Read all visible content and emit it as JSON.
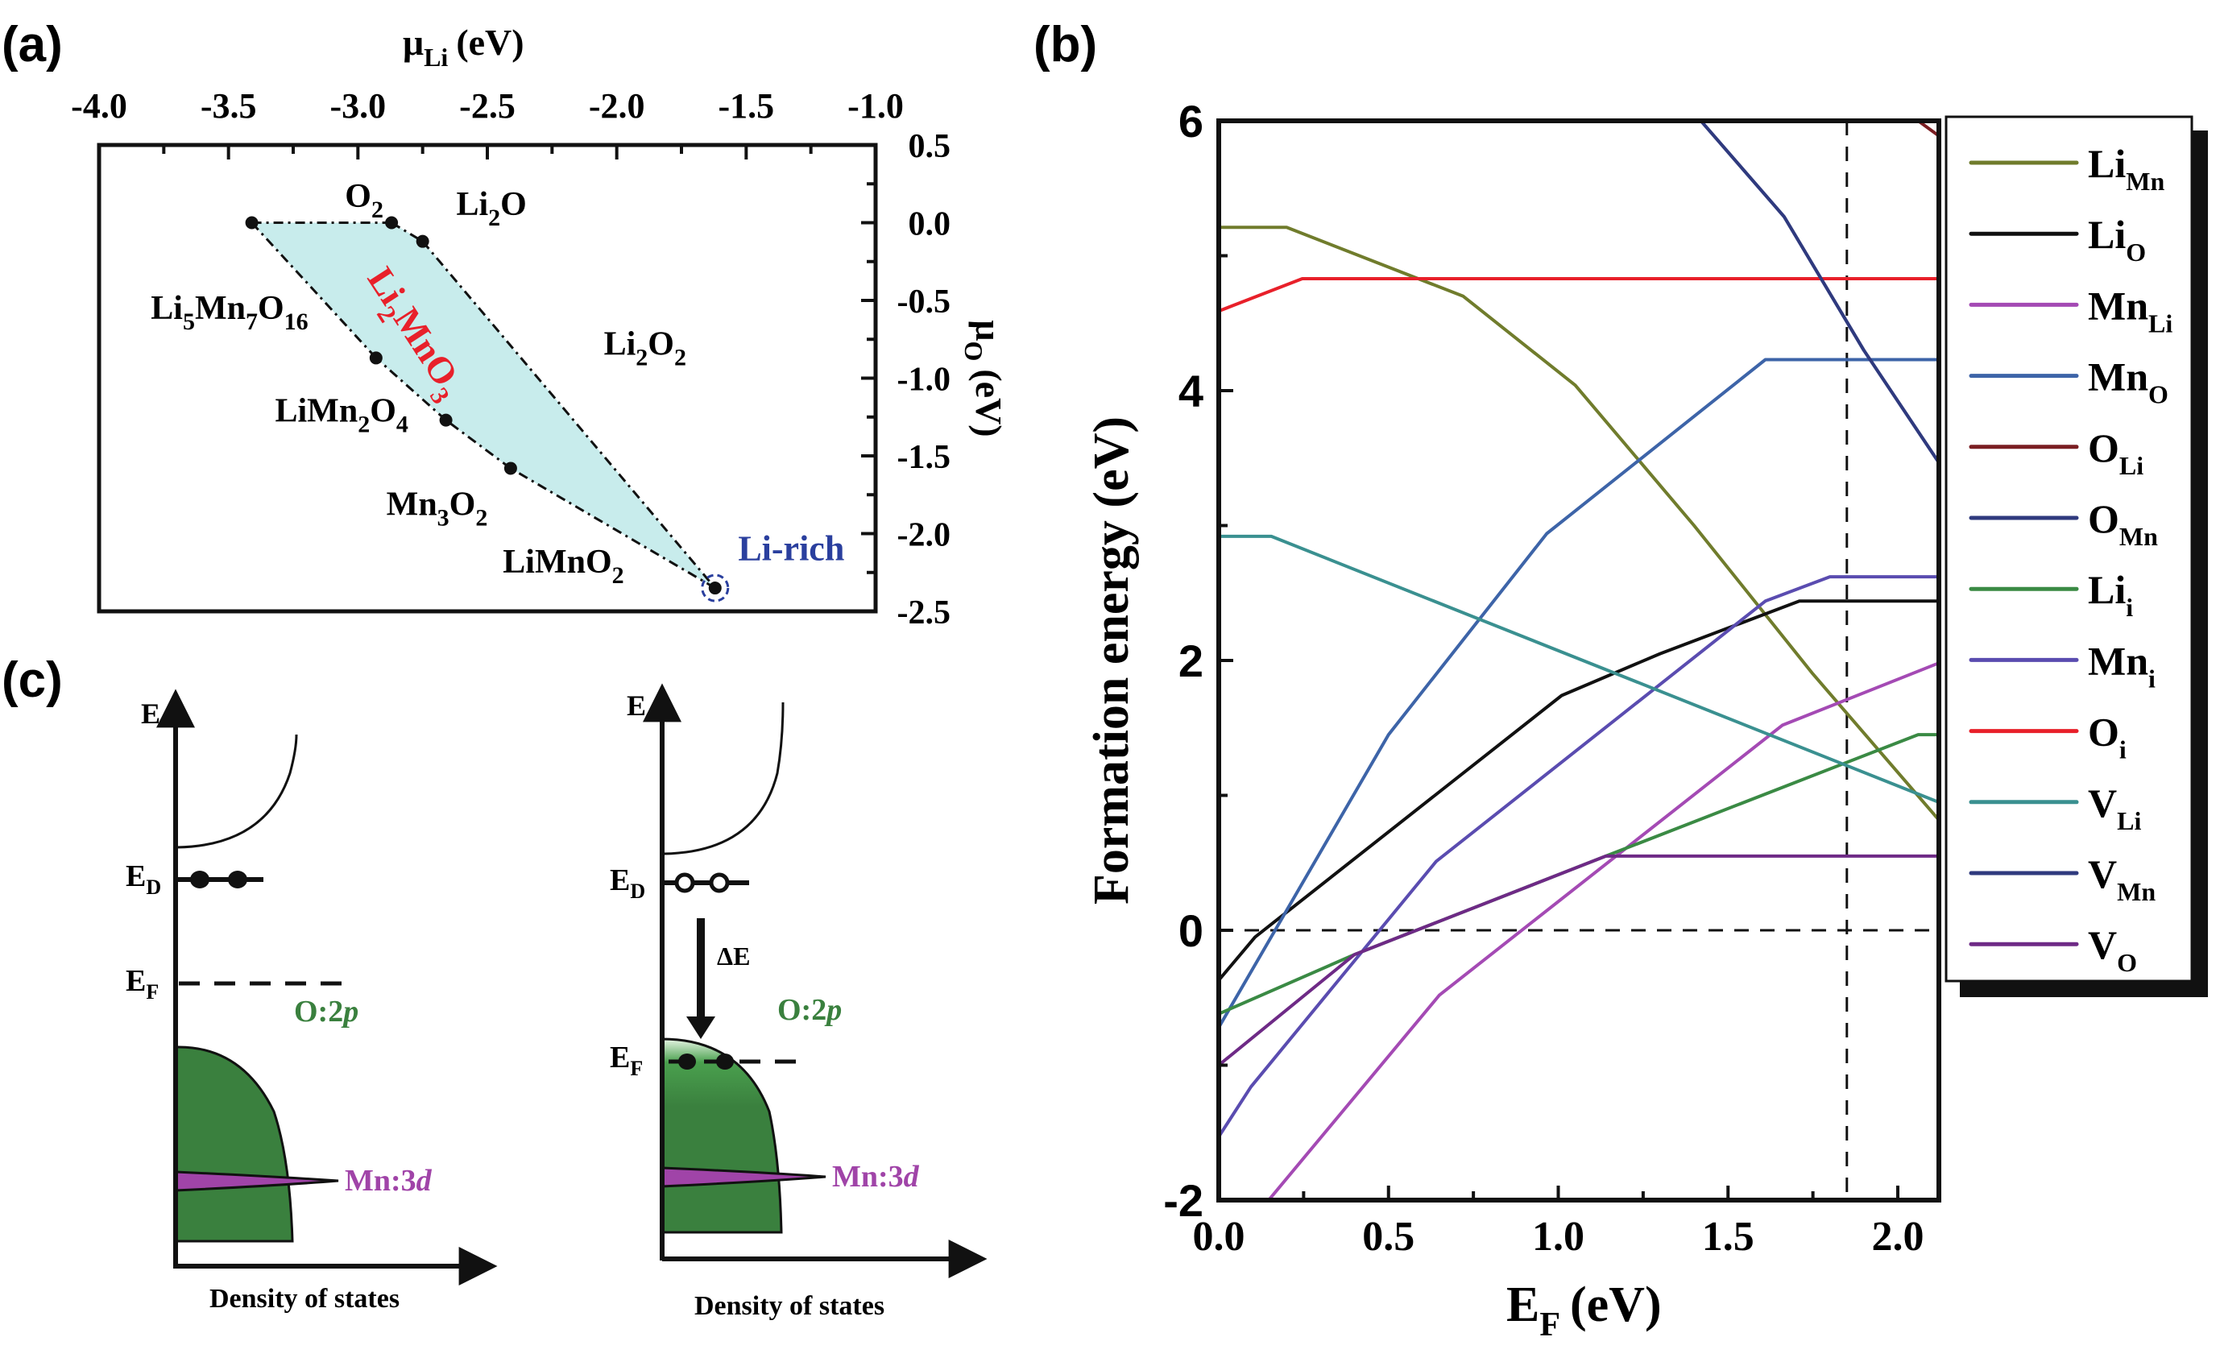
{
  "figure": {
    "panel_labels": {
      "a": "(a)",
      "b": "(b)",
      "c": "(c)"
    }
  },
  "chart_data": [
    {
      "id": "a",
      "type": "area",
      "title": "",
      "xlabel": "μ",
      "xlabel_sub": "Li",
      "xlabel_unit": "(eV)",
      "ylabel": "μ",
      "ylabel_sub": "O",
      "ylabel_unit": "(eV)",
      "x_axis_position": "top",
      "y_axis_position": "right",
      "xlim": [
        -4.0,
        -1.0
      ],
      "ylim": [
        -2.5,
        0.5
      ],
      "xticks": [
        "-4.0",
        "-3.5",
        "-3.0",
        "-2.5",
        "-2.0",
        "-1.5",
        "-1.0"
      ],
      "xtick_values": [
        -4.0,
        -3.5,
        -3.0,
        -2.5,
        -2.0,
        -1.5,
        -1.0
      ],
      "yticks": [
        "0.5",
        "0.0",
        "-0.5",
        "-1.0",
        "-1.5",
        "-2.0",
        "-2.5"
      ],
      "ytick_values": [
        0.5,
        0.0,
        -0.5,
        -1.0,
        -1.5,
        -2.0,
        -2.5
      ],
      "region_label": {
        "main": "Li",
        "sub1": "2",
        "mid": "MnO",
        "sub2": "3",
        "color": "#e8202a"
      },
      "fill_color": "#c8ecec",
      "polygon": [
        {
          "x": -3.41,
          "y": 0.0
        },
        {
          "x": -2.87,
          "y": 0.0
        },
        {
          "x": -2.75,
          "y": -0.12
        },
        {
          "x": -1.62,
          "y": -2.35
        },
        {
          "x": -2.41,
          "y": -1.58
        },
        {
          "x": -2.66,
          "y": -1.27
        },
        {
          "x": -2.93,
          "y": -0.87
        }
      ],
      "points": [
        {
          "x": -3.41,
          "y": 0.0
        },
        {
          "x": -2.87,
          "y": 0.0
        },
        {
          "x": -2.75,
          "y": -0.12
        },
        {
          "x": -2.93,
          "y": -0.87
        },
        {
          "x": -2.66,
          "y": -1.27
        },
        {
          "x": -2.41,
          "y": -1.58
        },
        {
          "x": -1.62,
          "y": -2.35
        }
      ],
      "phase_labels": [
        {
          "main": "O",
          "sub": "2",
          "x": -3.05,
          "y": 0.1
        },
        {
          "main": "Li",
          "sub": "2",
          "tail": "O",
          "x": -2.62,
          "y": 0.05
        },
        {
          "main": "Li",
          "sub": "5",
          "tail": "Mn",
          "sub2": "7",
          "tail2": "O",
          "sub3": "16",
          "x": -3.8,
          "y": -0.62
        },
        {
          "main": "Li",
          "sub": "2",
          "tail": "O",
          "sub2": "2",
          "x": -2.05,
          "y": -0.85
        },
        {
          "main": "LiMn",
          "sub": "2",
          "tail": "O",
          "sub2": "4",
          "x": -3.32,
          "y": -1.28
        },
        {
          "main": "Mn",
          "sub": "3",
          "tail": "O",
          "sub2": "2",
          "x": -2.89,
          "y": -1.88
        },
        {
          "main": "LiMnO",
          "sub": "2",
          "x": -2.44,
          "y": -2.25
        }
      ],
      "annotation": {
        "text": "Li-rich",
        "color": "#2a3f9e",
        "x": -1.5,
        "y": -2.17
      }
    },
    {
      "id": "b",
      "type": "line",
      "title": "",
      "xlabel": "E",
      "xlabel_sub": "F",
      "xlabel_unit": "(eV)",
      "ylabel": "Formation energy (eV)",
      "xlim": [
        0.0,
        2.12
      ],
      "ylim": [
        -2,
        6
      ],
      "xticks": [
        "0.0",
        "0.5",
        "1.0",
        "1.5",
        "2.0"
      ],
      "xtick_values": [
        0.0,
        0.5,
        1.0,
        1.5,
        2.0
      ],
      "yticks": [
        "6",
        "4",
        "2",
        "0",
        "-2"
      ],
      "ytick_values": [
        6,
        4,
        2,
        0,
        -2
      ],
      "reference_lines": {
        "horizontal_y": 0,
        "vertical_x": 1.85
      },
      "legend_position": "right",
      "series": [
        {
          "name": "Li",
          "sub": "Mn",
          "color": "#707c2c",
          "points": [
            [
              0.0,
              5.21
            ],
            [
              0.2,
              5.21
            ],
            [
              0.72,
              4.7
            ],
            [
              1.05,
              4.04
            ],
            [
              1.4,
              3.0
            ],
            [
              1.75,
              1.9
            ],
            [
              2.12,
              0.82
            ]
          ]
        },
        {
          "name": "Li",
          "sub": "O",
          "color": "#111111",
          "points": [
            [
              0.0,
              -0.37
            ],
            [
              0.107,
              -0.05
            ],
            [
              1.01,
              1.74
            ],
            [
              1.3,
              2.05
            ],
            [
              1.71,
              2.44
            ],
            [
              2.12,
              2.44
            ]
          ]
        },
        {
          "name": "Mn",
          "sub": "Li",
          "color": "#a44ab4",
          "points": [
            [
              0.147,
              -2.0
            ],
            [
              0.65,
              -0.48
            ],
            [
              1.17,
              0.55
            ],
            [
              1.66,
              1.52
            ],
            [
              2.12,
              1.98
            ]
          ]
        },
        {
          "name": "Mn",
          "sub": "O",
          "color": "#3d64a8",
          "points": [
            [
              0.0,
              -0.72
            ],
            [
              0.5,
              1.45
            ],
            [
              0.966,
              2.94
            ],
            [
              1.61,
              4.23
            ],
            [
              2.12,
              4.23
            ]
          ]
        },
        {
          "name": "O",
          "sub": "Li",
          "color": "#7a1e22",
          "points": [
            [
              2.06,
              6.0
            ],
            [
              2.12,
              5.89
            ]
          ]
        },
        {
          "name": "O",
          "sub": "Mn",
          "color": "#2f3a7e",
          "points": [
            [
              1.42,
              6.0
            ],
            [
              1.665,
              5.29
            ],
            [
              1.9,
              4.3
            ],
            [
              2.12,
              3.47
            ]
          ]
        },
        {
          "name": "Li",
          "sub": "i",
          "color": "#3a8a44",
          "points": [
            [
              0.0,
              -0.62
            ],
            [
              0.4,
              -0.18
            ],
            [
              1.14,
              0.55
            ],
            [
              2.06,
              1.45
            ],
            [
              2.12,
              1.45
            ]
          ]
        },
        {
          "name": "Mn",
          "sub": "i",
          "color": "#5a4cb0",
          "points": [
            [
              0.0,
              -1.53
            ],
            [
              0.095,
              -1.16
            ],
            [
              0.64,
              0.51
            ],
            [
              1.61,
              2.44
            ],
            [
              1.8,
              2.62
            ],
            [
              2.12,
              2.62
            ]
          ]
        },
        {
          "name": "O",
          "sub": "i",
          "color": "#e8202a",
          "points": [
            [
              0.0,
              4.59
            ],
            [
              0.246,
              4.83
            ],
            [
              2.12,
              4.83
            ]
          ]
        },
        {
          "name": "V",
          "sub": "Li",
          "color": "#3a9090",
          "points": [
            [
              0.0,
              2.92
            ],
            [
              0.155,
              2.92
            ],
            [
              2.12,
              0.95
            ]
          ]
        },
        {
          "name": "V",
          "sub": "Mn",
          "color": "#2f3a7e",
          "points": [
            [
              1.42,
              6.0
            ],
            [
              1.665,
              5.29
            ],
            [
              1.9,
              4.3
            ],
            [
              2.12,
              3.47
            ]
          ]
        },
        {
          "name": "V",
          "sub": "O",
          "color": "#6e2a86",
          "points": [
            [
              0.0,
              -1.0
            ],
            [
              0.4,
              -0.18
            ],
            [
              1.14,
              0.55
            ],
            [
              2.12,
              0.55
            ]
          ]
        }
      ]
    }
  ],
  "diagram_c": {
    "left": {
      "axis_e": "E",
      "level_d": {
        "main": "E",
        "sub": "D"
      },
      "level_f": {
        "main": "E",
        "sub": "F"
      },
      "o2p_label": {
        "main": "O:2",
        "italic": "p"
      },
      "mn3d_label": {
        "main": "Mn:3",
        "italic": "d"
      },
      "xlabel": "Density of states",
      "donor_state": "filled"
    },
    "right": {
      "axis_e": "E",
      "level_d": {
        "main": "E",
        "sub": "D"
      },
      "level_f": {
        "main": "E",
        "sub": "F"
      },
      "delta_label": "ΔE",
      "o2p_label": {
        "main": "O:2",
        "italic": "p"
      },
      "mn3d_label": {
        "main": "Mn:3",
        "italic": "d"
      },
      "xlabel": "Density of states",
      "donor_state": "empty"
    },
    "colors": {
      "o2p": "#3a803e",
      "mn3d": "#a044a8",
      "o2p_text": "#3a803e",
      "mn3d_text": "#a044a8"
    }
  }
}
